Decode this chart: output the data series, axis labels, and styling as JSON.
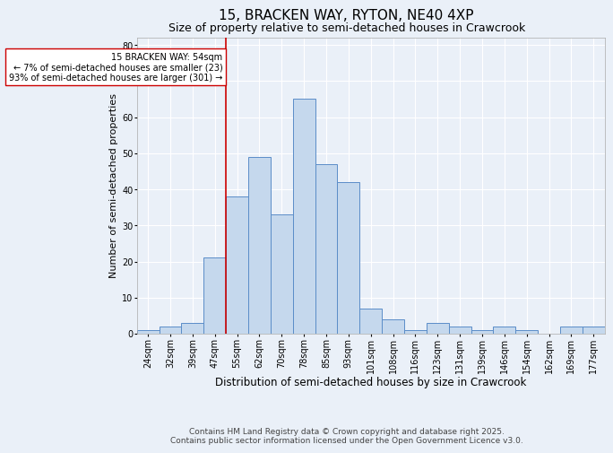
{
  "title1": "15, BRACKEN WAY, RYTON, NE40 4XP",
  "title2": "Size of property relative to semi-detached houses in Crawcrook",
  "xlabel": "Distribution of semi-detached houses by size in Crawcrook",
  "ylabel": "Number of semi-detached properties",
  "categories": [
    "24sqm",
    "32sqm",
    "39sqm",
    "47sqm",
    "55sqm",
    "62sqm",
    "70sqm",
    "78sqm",
    "85sqm",
    "93sqm",
    "101sqm",
    "108sqm",
    "116sqm",
    "123sqm",
    "131sqm",
    "139sqm",
    "146sqm",
    "154sqm",
    "162sqm",
    "169sqm",
    "177sqm"
  ],
  "bar_heights": [
    1,
    2,
    3,
    21,
    38,
    49,
    33,
    65,
    47,
    42,
    7,
    4,
    1,
    3,
    2,
    1,
    2,
    1,
    0,
    2,
    2
  ],
  "bar_color": "#c5d8ed",
  "bar_edge_color": "#5b8dc8",
  "vline_x_idx": 4,
  "vline_color": "#cc0000",
  "annotation_text": "15 BRACKEN WAY: 54sqm\n← 7% of semi-detached houses are smaller (23)\n93% of semi-detached houses are larger (301) →",
  "annotation_box_color": "#ffffff",
  "annotation_box_edge_color": "#cc0000",
  "ylim": [
    0,
    82
  ],
  "yticks": [
    0,
    10,
    20,
    30,
    40,
    50,
    60,
    70,
    80
  ],
  "bg_color": "#eaf0f8",
  "plot_bg_color": "#eaf0f8",
  "footer1": "Contains HM Land Registry data © Crown copyright and database right 2025.",
  "footer2": "Contains public sector information licensed under the Open Government Licence v3.0.",
  "title1_fontsize": 11,
  "title2_fontsize": 9,
  "xlabel_fontsize": 8.5,
  "ylabel_fontsize": 8,
  "tick_fontsize": 7,
  "annotation_fontsize": 7,
  "footer_fontsize": 6.5
}
